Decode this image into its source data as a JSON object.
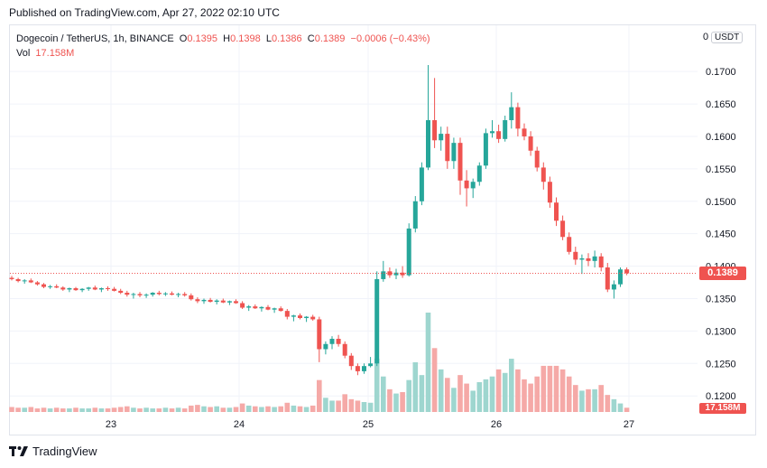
{
  "header": {
    "published": "Published on TradingView.com, Apr 27, 2022 02:10 UTC"
  },
  "legend": {
    "pair": "Dogecoin / TetherUS, 1h, BINANCE",
    "open_label": "O",
    "open": "0.1395",
    "high_label": "H",
    "high": "0.1398",
    "low_label": "L",
    "low": "0.1386",
    "close_label": "C",
    "close": "0.1389",
    "change": "−0.0006 (−0.43%)",
    "vol_label": "Vol",
    "vol": "17.158M"
  },
  "currency_button": "USDT",
  "price_axis_top_label": "0",
  "current_price_tag": "0.1389",
  "volume_tag": "17.158M",
  "footer": {
    "brand": "TradingView",
    "logo_icon": "tradingview-logo-icon"
  },
  "colors": {
    "up": "#26a69a",
    "down": "#ef5350",
    "up_vol": "#9ed6cf",
    "down_vol": "#f5a9a7",
    "grid": "#f0f3fa"
  },
  "chart_data": {
    "type": "candlestick",
    "symbol": "Dogecoin / TetherUS",
    "interval": "1h",
    "exchange": "BINANCE",
    "y_ticks": [
      "0.1700",
      "0.1650",
      "0.1600",
      "0.1550",
      "0.1500",
      "0.1450",
      "0.1400",
      "0.1350",
      "0.1300",
      "0.1250",
      "0.1200"
    ],
    "ylim": [
      0.1178,
      0.1742
    ],
    "x_ticks": [
      "23",
      "24",
      "25",
      "26",
      "27"
    ],
    "last_price": 0.1389,
    "candles": [
      [
        0.1382,
        0.1385,
        0.1378,
        0.138
      ],
      [
        0.138,
        0.1382,
        0.1375,
        0.1377
      ],
      [
        0.1377,
        0.138,
        0.1373,
        0.1378
      ],
      [
        0.1378,
        0.1381,
        0.1374,
        0.1375
      ],
      [
        0.1375,
        0.1377,
        0.137,
        0.1372
      ],
      [
        0.1372,
        0.1374,
        0.1366,
        0.1368
      ],
      [
        0.1368,
        0.1371,
        0.1365,
        0.1369
      ],
      [
        0.1369,
        0.1372,
        0.1366,
        0.1367
      ],
      [
        0.1367,
        0.1369,
        0.1362,
        0.1364
      ],
      [
        0.1364,
        0.1367,
        0.136,
        0.1366
      ],
      [
        0.1366,
        0.1368,
        0.1362,
        0.1363
      ],
      [
        0.1363,
        0.1366,
        0.136,
        0.1365
      ],
      [
        0.1365,
        0.1368,
        0.1362,
        0.1367
      ],
      [
        0.1367,
        0.137,
        0.1363,
        0.1364
      ],
      [
        0.1364,
        0.1367,
        0.136,
        0.1366
      ],
      [
        0.1366,
        0.1369,
        0.1362,
        0.1365
      ],
      [
        0.1365,
        0.1368,
        0.1361,
        0.1362
      ],
      [
        0.1362,
        0.1365,
        0.1357,
        0.1359
      ],
      [
        0.1359,
        0.1362,
        0.1353,
        0.1356
      ],
      [
        0.1356,
        0.1359,
        0.135,
        0.1357
      ],
      [
        0.1357,
        0.136,
        0.1352,
        0.1355
      ],
      [
        0.1355,
        0.1358,
        0.1351,
        0.1356
      ],
      [
        0.1356,
        0.136,
        0.1353,
        0.1359
      ],
      [
        0.1359,
        0.1362,
        0.1355,
        0.1357
      ],
      [
        0.1357,
        0.136,
        0.1354,
        0.1358
      ],
      [
        0.1358,
        0.1361,
        0.1355,
        0.1356
      ],
      [
        0.1356,
        0.1359,
        0.1352,
        0.1357
      ],
      [
        0.1357,
        0.136,
        0.1353,
        0.1355
      ],
      [
        0.1355,
        0.1358,
        0.1347,
        0.1349
      ],
      [
        0.1349,
        0.1352,
        0.1343,
        0.1346
      ],
      [
        0.1346,
        0.135,
        0.1342,
        0.1348
      ],
      [
        0.1348,
        0.1351,
        0.1344,
        0.1345
      ],
      [
        0.1345,
        0.1349,
        0.1341,
        0.1347
      ],
      [
        0.1347,
        0.135,
        0.1343,
        0.1344
      ],
      [
        0.1344,
        0.1347,
        0.134,
        0.1346
      ],
      [
        0.1346,
        0.1349,
        0.1342,
        0.1343
      ],
      [
        0.1343,
        0.1346,
        0.1334,
        0.1336
      ],
      [
        0.1336,
        0.134,
        0.1331,
        0.1338
      ],
      [
        0.1338,
        0.1341,
        0.1334,
        0.1335
      ],
      [
        0.1335,
        0.1338,
        0.133,
        0.1337
      ],
      [
        0.1337,
        0.134,
        0.1332,
        0.1333
      ],
      [
        0.1333,
        0.1336,
        0.1328,
        0.1335
      ],
      [
        0.1335,
        0.1338,
        0.133,
        0.1331
      ],
      [
        0.1331,
        0.1334,
        0.1318,
        0.1322
      ],
      [
        0.1322,
        0.1325,
        0.1315,
        0.1324
      ],
      [
        0.1324,
        0.1327,
        0.1318,
        0.132
      ],
      [
        0.132,
        0.1323,
        0.1314,
        0.1322
      ],
      [
        0.1322,
        0.1325,
        0.1316,
        0.1318
      ],
      [
        0.1318,
        0.1322,
        0.1252,
        0.1272
      ],
      [
        0.1272,
        0.1284,
        0.1264,
        0.128
      ],
      [
        0.128,
        0.1292,
        0.1272,
        0.1288
      ],
      [
        0.1288,
        0.1294,
        0.1276,
        0.128
      ],
      [
        0.128,
        0.1284,
        0.1258,
        0.1262
      ],
      [
        0.1262,
        0.1266,
        0.124,
        0.1246
      ],
      [
        0.1246,
        0.125,
        0.1232,
        0.1238
      ],
      [
        0.1238,
        0.125,
        0.1234,
        0.1246
      ],
      [
        0.1246,
        0.126,
        0.1244,
        0.125
      ],
      [
        0.125,
        0.1392,
        0.1246,
        0.138
      ],
      [
        0.138,
        0.1408,
        0.1376,
        0.1392
      ],
      [
        0.1392,
        0.1398,
        0.1382,
        0.1386
      ],
      [
        0.1386,
        0.1396,
        0.138,
        0.139
      ],
      [
        0.139,
        0.14,
        0.1382,
        0.1386
      ],
      [
        0.1386,
        0.1466,
        0.1384,
        0.1458
      ],
      [
        0.1458,
        0.1508,
        0.1452,
        0.15
      ],
      [
        0.15,
        0.156,
        0.1494,
        0.1552
      ],
      [
        0.1552,
        0.171,
        0.1548,
        0.1625
      ],
      [
        0.1625,
        0.169,
        0.1582,
        0.1594
      ],
      [
        0.1594,
        0.1615,
        0.1578,
        0.1604
      ],
      [
        0.1604,
        0.1615,
        0.155,
        0.1562
      ],
      [
        0.1562,
        0.1598,
        0.155,
        0.159
      ],
      [
        0.159,
        0.1598,
        0.151,
        0.1532
      ],
      [
        0.1532,
        0.1548,
        0.1492,
        0.152
      ],
      [
        0.152,
        0.1535,
        0.1505,
        0.153
      ],
      [
        0.153,
        0.156,
        0.1524,
        0.1555
      ],
      [
        0.1555,
        0.1612,
        0.155,
        0.1605
      ],
      [
        0.1605,
        0.1625,
        0.1598,
        0.1608
      ],
      [
        0.1608,
        0.1618,
        0.159,
        0.1596
      ],
      [
        0.1596,
        0.1632,
        0.1592,
        0.1625
      ],
      [
        0.1625,
        0.1668,
        0.1612,
        0.1645
      ],
      [
        0.1645,
        0.1652,
        0.16,
        0.1612
      ],
      [
        0.1612,
        0.162,
        0.1594,
        0.16
      ],
      [
        0.16,
        0.1608,
        0.157,
        0.1578
      ],
      [
        0.1578,
        0.1584,
        0.1546,
        0.1552
      ],
      [
        0.1552,
        0.156,
        0.1518,
        0.153
      ],
      [
        0.153,
        0.1538,
        0.149,
        0.1498
      ],
      [
        0.1498,
        0.1506,
        0.1462,
        0.147
      ],
      [
        0.147,
        0.1478,
        0.144,
        0.1445
      ],
      [
        0.1445,
        0.1452,
        0.1418,
        0.1422
      ],
      [
        0.1422,
        0.143,
        0.1402,
        0.141
      ],
      [
        0.141,
        0.1418,
        0.1388,
        0.1412
      ],
      [
        0.1412,
        0.142,
        0.14,
        0.1408
      ],
      [
        0.1408,
        0.1424,
        0.1398,
        0.1415
      ],
      [
        0.1415,
        0.142,
        0.1392,
        0.1398
      ],
      [
        0.1398,
        0.1405,
        0.136,
        0.1364
      ],
      [
        0.1364,
        0.1378,
        0.135,
        0.1372
      ],
      [
        0.1372,
        0.1398,
        0.1368,
        0.1395
      ],
      [
        0.1395,
        0.1398,
        0.1386,
        0.1389
      ]
    ],
    "volumes": [
      0.7,
      0.6,
      0.6,
      0.7,
      0.5,
      0.6,
      0.5,
      0.6,
      0.5,
      0.5,
      0.6,
      0.5,
      0.5,
      0.6,
      0.5,
      0.5,
      0.6,
      0.7,
      0.8,
      0.6,
      0.5,
      0.6,
      0.5,
      0.5,
      0.6,
      0.5,
      0.6,
      0.5,
      0.9,
      1.0,
      0.8,
      0.7,
      0.8,
      0.6,
      0.6,
      0.7,
      1.2,
      0.9,
      0.8,
      0.7,
      0.8,
      0.7,
      0.8,
      1.3,
      0.9,
      0.8,
      0.7,
      0.9,
      4.5,
      2.0,
      1.6,
      1.6,
      2.5,
      1.8,
      1.6,
      1.4,
      1.3,
      7.5,
      5.0,
      3.2,
      2.6,
      2.8,
      4.5,
      7.0,
      5.2,
      14.0,
      9.0,
      6.0,
      4.8,
      3.4,
      5.2,
      4.0,
      3.0,
      4.2,
      4.6,
      5.0,
      6.0,
      5.5,
      7.5,
      6.0,
      4.6,
      4.0,
      5.0,
      6.5,
      6.5,
      6.5,
      6.0,
      5.0,
      3.8,
      3.0,
      3.2,
      3.2,
      3.8,
      2.4,
      1.8,
      1.2,
      0.6
    ]
  }
}
